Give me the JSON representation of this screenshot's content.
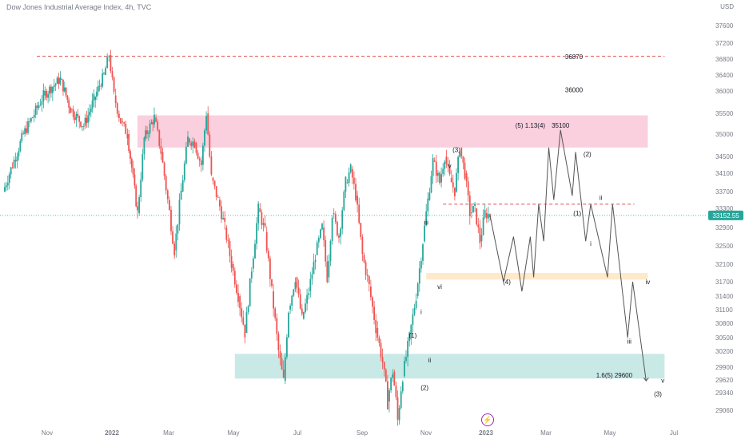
{
  "header": {
    "title": "Dow Jones Industrial Average Index, 4h, TVC",
    "currency": "USD"
  },
  "colors": {
    "up": "#26a69a",
    "down": "#ef5350",
    "resistance_zone": "#f8bbd0",
    "support_zone": "#b2dfdb",
    "mid_zone": "#ffe0b2",
    "dashed_line": "#e57373",
    "last_price_bg": "#26a69a",
    "last_price_line": "#26a69a",
    "projection": "#555555",
    "axis_text": "#787b86",
    "event_icon": "#9c27b0"
  },
  "chart_data": {
    "type": "candlestick",
    "title": "Dow Jones Industrial Average Index, 4h, TVC",
    "y_axis_ticks": [
      37600,
      37200,
      36800,
      36400,
      36000,
      35500,
      35000,
      34500,
      34100,
      33700,
      33300,
      32900,
      32500,
      32100,
      31700,
      31400,
      31100,
      30800,
      30500,
      30200,
      29900,
      29620,
      29340,
      29060
    ],
    "x_axis_ticks": [
      "Nov",
      "2022",
      "Mar",
      "May",
      "Jul",
      "Sep",
      "Nov",
      "2023",
      "Mar",
      "May",
      "Jul"
    ],
    "last_price": "33152.55",
    "price_path": [
      [
        0,
        33700
      ],
      [
        6,
        35000
      ],
      [
        12,
        35900
      ],
      [
        17,
        36300
      ],
      [
        20,
        35600
      ],
      [
        24,
        35200
      ],
      [
        27,
        35800
      ],
      [
        30,
        36400
      ],
      [
        31.5,
        36900
      ],
      [
        33,
        35900
      ],
      [
        35,
        35300
      ],
      [
        37,
        35000
      ],
      [
        40,
        33200
      ],
      [
        42,
        34900
      ],
      [
        45,
        35400
      ],
      [
        47,
        34600
      ],
      [
        49,
        33500
      ],
      [
        51,
        32400
      ],
      [
        53,
        33700
      ],
      [
        55,
        34900
      ],
      [
        57,
        34800
      ],
      [
        59,
        34300
      ],
      [
        60.5,
        35500
      ],
      [
        62,
        34000
      ],
      [
        64,
        33500
      ],
      [
        66,
        32900
      ],
      [
        68,
        32100
      ],
      [
        70,
        31400
      ],
      [
        72,
        30600
      ],
      [
        74,
        32000
      ],
      [
        76,
        33300
      ],
      [
        78,
        32800
      ],
      [
        80,
        31500
      ],
      [
        82,
        30200
      ],
      [
        83.5,
        29600
      ],
      [
        85,
        31100
      ],
      [
        87,
        31800
      ],
      [
        89,
        30900
      ],
      [
        91,
        31500
      ],
      [
        93,
        32300
      ],
      [
        95,
        32900
      ],
      [
        96.5,
        31800
      ],
      [
        98,
        33200
      ],
      [
        100,
        32700
      ],
      [
        102,
        33900
      ],
      [
        103.5,
        34200
      ],
      [
        105,
        33600
      ],
      [
        107,
        32300
      ],
      [
        109,
        31600
      ],
      [
        111,
        30700
      ],
      [
        113,
        30000
      ],
      [
        114.5,
        29200
      ],
      [
        116,
        29800
      ],
      [
        117.5,
        28900
      ],
      [
        119,
        29700
      ],
      [
        121,
        30500
      ],
      [
        123,
        31400
      ],
      [
        125,
        32600
      ],
      [
        126.5,
        33500
      ],
      [
        128,
        34400
      ],
      [
        130,
        33900
      ],
      [
        131.5,
        34500
      ],
      [
        133,
        34000
      ],
      [
        134.5,
        33700
      ],
      [
        136,
        34700
      ],
      [
        137.5,
        34100
      ],
      [
        139,
        33200
      ],
      [
        140.5,
        33300
      ],
      [
        142,
        32600
      ],
      [
        143.5,
        33200
      ],
      [
        145,
        33152.55
      ]
    ],
    "projection_path": [
      [
        145,
        33152.55
      ],
      [
        149,
        31700
      ],
      [
        152,
        32700
      ],
      [
        154.5,
        31500
      ],
      [
        157,
        32700
      ],
      [
        158,
        31800
      ],
      [
        159.5,
        33400
      ],
      [
        161,
        32600
      ],
      [
        162.5,
        34700
      ],
      [
        164,
        33500
      ],
      [
        166,
        35100
      ],
      [
        169.5,
        33600
      ],
      [
        170.5,
        34600
      ],
      [
        173.5,
        32600
      ],
      [
        175,
        33400
      ],
      [
        180,
        31800
      ],
      [
        181.5,
        33400
      ],
      [
        186,
        30500
      ],
      [
        187.5,
        31700
      ],
      [
        191.5,
        29600
      ]
    ],
    "zones": [
      {
        "name": "resistance-zone",
        "y_top": 35450,
        "y_bottom": 34700,
        "x_start": 40,
        "x_end": 192
      },
      {
        "name": "mid-zone",
        "y_top": 31900,
        "y_bottom": 31750,
        "x_start": 126,
        "x_end": 192
      },
      {
        "name": "support-zone",
        "y_top": 30150,
        "y_bottom": 29650,
        "x_start": 69,
        "x_end": 197
      }
    ],
    "levels": [
      {
        "name": "level-36870",
        "y": 36870,
        "x_start": 10,
        "x_end": 197
      },
      {
        "name": "level-33400",
        "y": 33400,
        "x_start": 131,
        "x_end": 188
      }
    ],
    "annotations": [
      {
        "text": "36870",
        "x": 170,
        "y": 36800
      },
      {
        "text": "36000",
        "x": 170,
        "y": 35970
      },
      {
        "text": "(5) 1.13(4)",
        "x": 157,
        "y": 35150
      },
      {
        "text": "35100",
        "x": 166,
        "y": 35150
      },
      {
        "text": "(3)",
        "x": 135,
        "y": 34600
      },
      {
        "text": "v",
        "x": 133,
        "y": 34220
      },
      {
        "text": "(2)",
        "x": 174,
        "y": 34500
      },
      {
        "text": "ii",
        "x": 178,
        "y": 33500
      },
      {
        "text": "(1)",
        "x": 171,
        "y": 33150
      },
      {
        "text": "iii",
        "x": 126,
        "y": 32960
      },
      {
        "text": "i",
        "x": 175,
        "y": 32500
      },
      {
        "text": "(4)",
        "x": 150,
        "y": 31650
      },
      {
        "text": "iv",
        "x": 192,
        "y": 31650
      },
      {
        "text": "vi",
        "x": 130,
        "y": 31550
      },
      {
        "text": "i",
        "x": 124.5,
        "y": 31000
      },
      {
        "text": "(1)",
        "x": 122,
        "y": 30500
      },
      {
        "text": "iii",
        "x": 186.5,
        "y": 30370
      },
      {
        "text": "ii",
        "x": 127,
        "y": 29990
      },
      {
        "text": "1.6(5) 29600",
        "x": 182,
        "y": 29670
      },
      {
        "text": "v",
        "x": 196.5,
        "y": 29560
      },
      {
        "text": "(2)",
        "x": 125.5,
        "y": 29400
      },
      {
        "text": "(3)",
        "x": 195,
        "y": 29280
      }
    ]
  }
}
